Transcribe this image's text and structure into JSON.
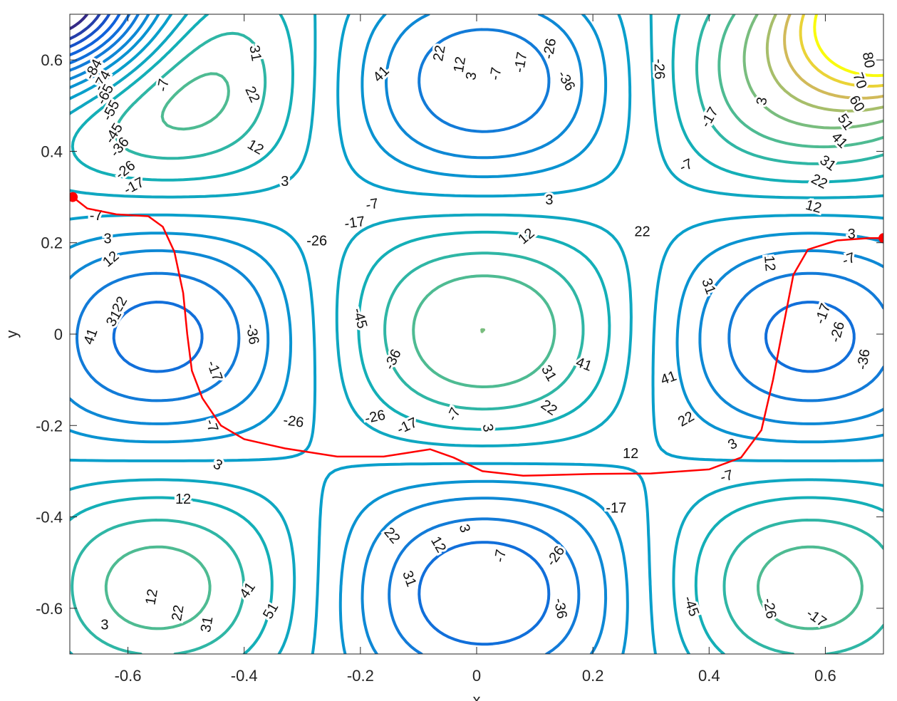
{
  "chart_data": {
    "type": "contour",
    "xlabel": "x",
    "ylabel": "y",
    "xlim": [
      -0.7,
      0.7
    ],
    "ylim": [
      -0.7,
      0.7
    ],
    "xticks": [
      -0.6,
      -0.4,
      -0.2,
      0,
      0.2,
      0.4,
      0.6
    ],
    "yticks": [
      -0.6,
      -0.4,
      -0.2,
      0,
      0.2,
      0.4,
      0.6
    ],
    "xtick_labels": [
      "-0.6",
      "-0.4",
      "-0.2",
      "0",
      "0.2",
      "0.4",
      "0.6"
    ],
    "ytick_labels": [
      "-0.6",
      "-0.4",
      "-0.2",
      "0",
      "0.2",
      "0.4",
      "0.6"
    ],
    "grid": false,
    "colormap": "parula",
    "contour_levels": [
      -84,
      -74,
      -65,
      -55,
      -45,
      -36,
      -26,
      -17,
      -7,
      3,
      12,
      22,
      31,
      41,
      51,
      60,
      70,
      80
    ],
    "contour_labels": [
      {
        "text": "-84",
        "x": -0.66,
        "y": 0.58,
        "angle": -62
      },
      {
        "text": "-74",
        "x": -0.645,
        "y": 0.555,
        "angle": -62
      },
      {
        "text": "-65",
        "x": -0.64,
        "y": 0.525,
        "angle": -62
      },
      {
        "text": "-55",
        "x": -0.63,
        "y": 0.49,
        "angle": -62
      },
      {
        "text": "-45",
        "x": -0.625,
        "y": 0.44,
        "angle": -58
      },
      {
        "text": "-36",
        "x": -0.615,
        "y": 0.41,
        "angle": -50
      },
      {
        "text": "-26",
        "x": -0.605,
        "y": 0.36,
        "angle": -38
      },
      {
        "text": "-17",
        "x": -0.59,
        "y": 0.325,
        "angle": -28
      },
      {
        "text": "-7",
        "x": -0.54,
        "y": 0.545,
        "angle": -80
      },
      {
        "text": "-7",
        "x": -0.655,
        "y": 0.26,
        "angle": 0
      },
      {
        "text": "3",
        "x": -0.635,
        "y": 0.21,
        "angle": 0
      },
      {
        "text": "12",
        "x": -0.63,
        "y": 0.165,
        "angle": -40
      },
      {
        "text": "22",
        "x": -0.615,
        "y": 0.065,
        "angle": -60
      },
      {
        "text": "31",
        "x": -0.625,
        "y": 0.035,
        "angle": -60
      },
      {
        "text": "41",
        "x": -0.665,
        "y": -0.005,
        "angle": -70
      },
      {
        "text": "31",
        "x": -0.38,
        "y": 0.615,
        "angle": 80
      },
      {
        "text": "22",
        "x": -0.385,
        "y": 0.525,
        "angle": 65
      },
      {
        "text": "12",
        "x": -0.38,
        "y": 0.41,
        "angle": 30
      },
      {
        "text": "3",
        "x": -0.33,
        "y": 0.335,
        "angle": 0
      },
      {
        "text": "41",
        "x": -0.165,
        "y": 0.57,
        "angle": -45
      },
      {
        "text": "22",
        "x": -0.065,
        "y": 0.615,
        "angle": -80
      },
      {
        "text": "12",
        "x": -0.03,
        "y": 0.59,
        "angle": -80
      },
      {
        "text": "3",
        "x": -0.01,
        "y": 0.565,
        "angle": -80
      },
      {
        "text": "-7",
        "x": 0.032,
        "y": 0.57,
        "angle": -80
      },
      {
        "text": "-17",
        "x": 0.075,
        "y": 0.595,
        "angle": -80
      },
      {
        "text": "-26",
        "x": 0.125,
        "y": 0.625,
        "angle": -80
      },
      {
        "text": "-36",
        "x": 0.155,
        "y": 0.555,
        "angle": 60
      },
      {
        "text": "-26",
        "x": 0.315,
        "y": 0.58,
        "angle": 88
      },
      {
        "text": "-17",
        "x": 0.4,
        "y": 0.475,
        "angle": -60
      },
      {
        "text": "-7",
        "x": 0.36,
        "y": 0.37,
        "angle": -25
      },
      {
        "text": "3",
        "x": 0.49,
        "y": 0.51,
        "angle": -80
      },
      {
        "text": "80",
        "x": 0.675,
        "y": 0.6,
        "angle": 80
      },
      {
        "text": "70",
        "x": 0.66,
        "y": 0.555,
        "angle": 70
      },
      {
        "text": "60",
        "x": 0.655,
        "y": 0.505,
        "angle": 60
      },
      {
        "text": "51",
        "x": 0.635,
        "y": 0.465,
        "angle": 55
      },
      {
        "text": "41",
        "x": 0.625,
        "y": 0.425,
        "angle": 45
      },
      {
        "text": "31",
        "x": 0.605,
        "y": 0.375,
        "angle": 35
      },
      {
        "text": "22",
        "x": 0.59,
        "y": 0.335,
        "angle": 28
      },
      {
        "text": "12",
        "x": 0.58,
        "y": 0.28,
        "angle": 15
      },
      {
        "text": "3",
        "x": 0.645,
        "y": 0.22,
        "angle": 0
      },
      {
        "text": "-7",
        "x": 0.64,
        "y": 0.165,
        "angle": -20
      },
      {
        "text": "-17",
        "x": 0.595,
        "y": 0.045,
        "angle": -70
      },
      {
        "text": "-26",
        "x": 0.62,
        "y": 0.005,
        "angle": -75
      },
      {
        "text": "-36",
        "x": 0.665,
        "y": -0.055,
        "angle": -80
      },
      {
        "text": "-7",
        "x": -0.18,
        "y": 0.285,
        "angle": -10
      },
      {
        "text": "-17",
        "x": -0.21,
        "y": 0.245,
        "angle": -8
      },
      {
        "text": "-26",
        "x": -0.275,
        "y": 0.205,
        "angle": 0
      },
      {
        "text": "-45",
        "x": -0.2,
        "y": 0.035,
        "angle": 75
      },
      {
        "text": "-36",
        "x": -0.385,
        "y": 0.0,
        "angle": 80
      },
      {
        "text": "-36",
        "x": -0.145,
        "y": -0.055,
        "angle": -65
      },
      {
        "text": "-17",
        "x": -0.45,
        "y": -0.08,
        "angle": 70
      },
      {
        "text": "-26",
        "x": -0.315,
        "y": -0.19,
        "angle": 8
      },
      {
        "text": "-26",
        "x": -0.175,
        "y": -0.18,
        "angle": -12
      },
      {
        "text": "-17",
        "x": -0.12,
        "y": -0.2,
        "angle": -25
      },
      {
        "text": "-7",
        "x": -0.04,
        "y": -0.175,
        "angle": -65
      },
      {
        "text": "12",
        "x": 0.085,
        "y": 0.215,
        "angle": -40
      },
      {
        "text": "3",
        "x": 0.125,
        "y": 0.295,
        "angle": 0
      },
      {
        "text": "22",
        "x": 0.285,
        "y": 0.225,
        "angle": 0
      },
      {
        "text": "31",
        "x": 0.4,
        "y": 0.105,
        "angle": 70
      },
      {
        "text": "12",
        "x": 0.505,
        "y": 0.155,
        "angle": 85
      },
      {
        "text": "41",
        "x": 0.185,
        "y": -0.065,
        "angle": 20
      },
      {
        "text": "41",
        "x": 0.33,
        "y": -0.095,
        "angle": -20
      },
      {
        "text": "31",
        "x": 0.125,
        "y": -0.085,
        "angle": 60
      },
      {
        "text": "22",
        "x": 0.125,
        "y": -0.16,
        "angle": 35
      },
      {
        "text": "22",
        "x": 0.36,
        "y": -0.185,
        "angle": -30
      },
      {
        "text": "3",
        "x": 0.02,
        "y": -0.205,
        "angle": 80
      },
      {
        "text": "12",
        "x": 0.265,
        "y": -0.26,
        "angle": 0
      },
      {
        "text": "3",
        "x": 0.44,
        "y": -0.24,
        "angle": -30
      },
      {
        "text": "-7",
        "x": 0.43,
        "y": -0.31,
        "angle": -15
      },
      {
        "text": "-7",
        "x": -0.455,
        "y": -0.2,
        "angle": 70
      },
      {
        "text": "3",
        "x": -0.445,
        "y": -0.285,
        "angle": 30
      },
      {
        "text": "12",
        "x": -0.505,
        "y": -0.36,
        "angle": 0
      },
      {
        "text": "-17",
        "x": 0.24,
        "y": -0.38,
        "angle": 0
      },
      {
        "text": "22",
        "x": -0.145,
        "y": -0.44,
        "angle": 50
      },
      {
        "text": "12",
        "x": -0.065,
        "y": -0.46,
        "angle": 60
      },
      {
        "text": "3",
        "x": -0.02,
        "y": -0.425,
        "angle": 75
      },
      {
        "text": "-7",
        "x": 0.04,
        "y": -0.485,
        "angle": -80
      },
      {
        "text": "-26",
        "x": 0.135,
        "y": -0.485,
        "angle": -55
      },
      {
        "text": "31",
        "x": -0.115,
        "y": -0.535,
        "angle": 70
      },
      {
        "text": "41",
        "x": -0.395,
        "y": -0.56,
        "angle": -55
      },
      {
        "text": "51",
        "x": -0.355,
        "y": -0.605,
        "angle": -60
      },
      {
        "text": "31",
        "x": -0.465,
        "y": -0.635,
        "angle": -80
      },
      {
        "text": "22",
        "x": -0.515,
        "y": -0.61,
        "angle": -80
      },
      {
        "text": "12",
        "x": -0.56,
        "y": -0.575,
        "angle": -80
      },
      {
        "text": "3",
        "x": -0.64,
        "y": -0.635,
        "angle": 0
      },
      {
        "text": "-36",
        "x": 0.145,
        "y": -0.6,
        "angle": 80
      },
      {
        "text": "-45",
        "x": 0.37,
        "y": -0.595,
        "angle": 70
      },
      {
        "text": "-26",
        "x": 0.505,
        "y": -0.6,
        "angle": 80
      },
      {
        "text": "-17",
        "x": 0.585,
        "y": -0.62,
        "angle": 35
      }
    ],
    "annotations": {
      "path_color": "#ff0000",
      "path_points": [
        [
          -0.695,
          0.3
        ],
        [
          -0.67,
          0.275
        ],
        [
          -0.62,
          0.262
        ],
        [
          -0.565,
          0.258
        ],
        [
          -0.54,
          0.235
        ],
        [
          -0.52,
          0.18
        ],
        [
          -0.505,
          0.09
        ],
        [
          -0.498,
          0.0
        ],
        [
          -0.49,
          -0.08
        ],
        [
          -0.472,
          -0.14
        ],
        [
          -0.44,
          -0.2
        ],
        [
          -0.4,
          -0.23
        ],
        [
          -0.33,
          -0.25
        ],
        [
          -0.24,
          -0.268
        ],
        [
          -0.16,
          -0.268
        ],
        [
          -0.11,
          -0.258
        ],
        [
          -0.08,
          -0.252
        ],
        [
          -0.04,
          -0.27
        ],
        [
          0.01,
          -0.3
        ],
        [
          0.08,
          -0.31
        ],
        [
          0.2,
          -0.306
        ],
        [
          0.3,
          -0.305
        ],
        [
          0.4,
          -0.296
        ],
        [
          0.455,
          -0.27
        ],
        [
          0.49,
          -0.21
        ],
        [
          0.51,
          -0.1
        ],
        [
          0.525,
          0.0
        ],
        [
          0.545,
          0.13
        ],
        [
          0.57,
          0.185
        ],
        [
          0.62,
          0.205
        ],
        [
          0.675,
          0.21
        ],
        [
          0.7,
          0.21
        ]
      ],
      "start_marker": [
        -0.695,
        0.3
      ],
      "end_marker": [
        0.7,
        0.21
      ]
    }
  }
}
